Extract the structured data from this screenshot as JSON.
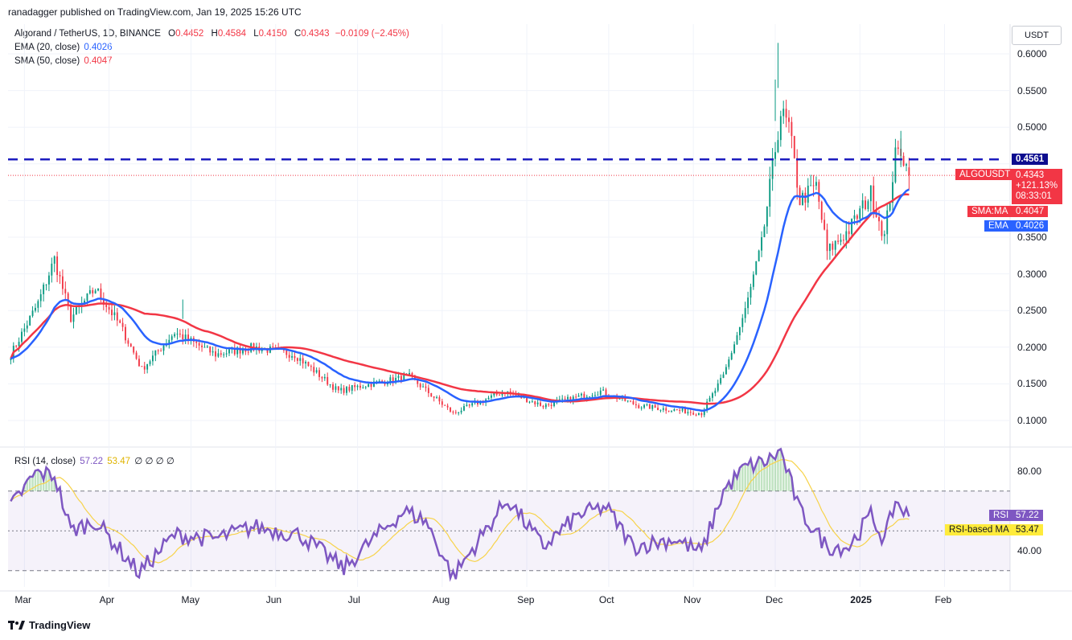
{
  "header": {
    "publisher": "ranadagger published on TradingView.com, Jan 19, 2025 15:26 UTC"
  },
  "legend": {
    "symbol": "Algorand / TetherUS, 1D, BINANCE",
    "open_label": "O",
    "open": "0.4452",
    "high_label": "H",
    "high": "0.4584",
    "low_label": "L",
    "low": "0.4150",
    "close_label": "C",
    "close": "0.4343",
    "change": "−0.0109 (−2.45%)",
    "ema_label": "EMA (20, close)",
    "ema_value": "0.4026",
    "sma_label": "SMA (50, close)",
    "sma_value": "0.4047",
    "rsi_label": "RSI (14, close)",
    "rsi_value": "57.22",
    "rsi_ma_value": "53.47",
    "rsi_extra": "∅ ∅ ∅ ∅"
  },
  "price_axis": {
    "currency": "USDT",
    "ticks": [
      "0.6000",
      "0.5500",
      "0.5000",
      "0.4500",
      "0.4000",
      "0.3500",
      "0.3000",
      "0.2500",
      "0.2000",
      "0.1500",
      "0.1000"
    ],
    "ticks_shown": [
      "0.6000",
      "0.5500",
      "0.5000",
      "0.3500",
      "0.3000",
      "0.2500",
      "0.2000",
      "0.1500",
      "0.1000"
    ]
  },
  "tags": {
    "resistance": "0.4561",
    "symbol_name": "ALGOUSDT",
    "last_price": "0.4343",
    "change_pct": "+121.13%",
    "countdown": "08:33:01",
    "sma_tag_label": "SMA:MA",
    "sma_tag_value": "0.4047",
    "ema_tag_label": "EMA",
    "ema_tag_value": "0.4026",
    "rsi_tag_label": "RSI",
    "rsi_tag_value": "57.22",
    "rsi_ma_tag_label": "RSI-based MA",
    "rsi_ma_tag_value": "53.47"
  },
  "rsi_axis": {
    "ticks": [
      "80.00",
      "40.00"
    ]
  },
  "time_axis": [
    "Mar",
    "Apr",
    "May",
    "Jun",
    "Jul",
    "Aug",
    "Sep",
    "Oct",
    "Nov",
    "Dec",
    "2025",
    "Feb"
  ],
  "branding": {
    "logo_text": "TradingView"
  },
  "colors": {
    "up": "#089981",
    "down": "#f23645",
    "ema": "#2962ff",
    "sma": "#f23645",
    "resistance": "#1d1dbf",
    "rsi": "#7e57c2",
    "rsi_ma": "#f7d34a"
  },
  "chart_data": [
    {
      "type": "candlestick",
      "title": "Algorand / TetherUS, 1D, BINANCE",
      "ylabel": "USDT",
      "ylim": [
        0.08,
        0.63
      ],
      "x_labels": [
        "Mar",
        "Apr",
        "May",
        "Jun",
        "Jul",
        "Aug",
        "Sep",
        "Oct",
        "Nov",
        "Dec",
        "2025",
        "Feb"
      ],
      "resistance_level": 0.4561,
      "anchors": [
        {
          "date": "2024-02-25",
          "close": 0.19
        },
        {
          "date": "2024-03-06",
          "close": 0.26
        },
        {
          "date": "2024-03-12",
          "close": 0.32
        },
        {
          "date": "2024-03-18",
          "close": 0.24
        },
        {
          "date": "2024-03-27",
          "close": 0.28
        },
        {
          "date": "2024-04-05",
          "close": 0.23
        },
        {
          "date": "2024-04-13",
          "close": 0.17
        },
        {
          "date": "2024-04-25",
          "close": 0.22
        },
        {
          "date": "2024-05-10",
          "close": 0.19
        },
        {
          "date": "2024-05-24",
          "close": 0.2
        },
        {
          "date": "2024-06-08",
          "close": 0.19
        },
        {
          "date": "2024-06-24",
          "close": 0.14
        },
        {
          "date": "2024-07-06",
          "close": 0.15
        },
        {
          "date": "2024-07-20",
          "close": 0.16
        },
        {
          "date": "2024-08-05",
          "close": 0.11
        },
        {
          "date": "2024-08-24",
          "close": 0.14
        },
        {
          "date": "2024-09-07",
          "close": 0.12
        },
        {
          "date": "2024-09-28",
          "close": 0.14
        },
        {
          "date": "2024-10-12",
          "close": 0.12
        },
        {
          "date": "2024-11-04",
          "close": 0.11
        },
        {
          "date": "2024-11-12",
          "close": 0.16
        },
        {
          "date": "2024-11-20",
          "close": 0.25
        },
        {
          "date": "2024-11-26",
          "close": 0.34
        },
        {
          "date": "2024-12-01",
          "close": 0.47
        },
        {
          "date": "2024-12-03",
          "close": 0.52
        },
        {
          "date": "2024-12-06",
          "close": 0.5
        },
        {
          "date": "2024-12-10",
          "close": 0.4
        },
        {
          "date": "2024-12-16",
          "close": 0.42
        },
        {
          "date": "2024-12-20",
          "close": 0.33
        },
        {
          "date": "2024-12-28",
          "close": 0.36
        },
        {
          "date": "2025-01-05",
          "close": 0.41
        },
        {
          "date": "2025-01-10",
          "close": 0.35
        },
        {
          "date": "2025-01-14",
          "close": 0.46
        },
        {
          "date": "2025-01-16",
          "close": 0.47
        },
        {
          "date": "2025-01-19",
          "close": 0.4343
        }
      ],
      "series": [
        {
          "name": "EMA (20, close)",
          "last": 0.4026
        },
        {
          "name": "SMA (50, close)",
          "last": 0.4047
        }
      ],
      "last_candle": {
        "open": 0.4452,
        "high": 0.4584,
        "low": 0.415,
        "close": 0.4343
      }
    },
    {
      "type": "line",
      "title": "RSI (14, close)",
      "ylim": [
        20,
        95
      ],
      "bands": [
        30,
        50,
        70
      ],
      "anchors": [
        {
          "date": "2024-02-25",
          "rsi": 62
        },
        {
          "date": "2024-03-05",
          "rsi": 79
        },
        {
          "date": "2024-03-12",
          "rsi": 78
        },
        {
          "date": "2024-03-18",
          "rsi": 50
        },
        {
          "date": "2024-03-27",
          "rsi": 55
        },
        {
          "date": "2024-04-12",
          "rsi": 29
        },
        {
          "date": "2024-04-25",
          "rsi": 48
        },
        {
          "date": "2024-05-10",
          "rsi": 46
        },
        {
          "date": "2024-05-24",
          "rsi": 52
        },
        {
          "date": "2024-06-10",
          "rsi": 48
        },
        {
          "date": "2024-06-26",
          "rsi": 31
        },
        {
          "date": "2024-07-06",
          "rsi": 45
        },
        {
          "date": "2024-07-18",
          "rsi": 60
        },
        {
          "date": "2024-07-26",
          "rsi": 55
        },
        {
          "date": "2024-08-05",
          "rsi": 27
        },
        {
          "date": "2024-08-25",
          "rsi": 66
        },
        {
          "date": "2024-09-07",
          "rsi": 42
        },
        {
          "date": "2024-09-20",
          "rsi": 58
        },
        {
          "date": "2024-09-30",
          "rsi": 62
        },
        {
          "date": "2024-10-10",
          "rsi": 42
        },
        {
          "date": "2024-10-25",
          "rsi": 46
        },
        {
          "date": "2024-11-04",
          "rsi": 39
        },
        {
          "date": "2024-11-12",
          "rsi": 70
        },
        {
          "date": "2024-11-20",
          "rsi": 82
        },
        {
          "date": "2024-11-28",
          "rsi": 85
        },
        {
          "date": "2024-12-03",
          "rsi": 90
        },
        {
          "date": "2024-12-10",
          "rsi": 60
        },
        {
          "date": "2024-12-20",
          "rsi": 42
        },
        {
          "date": "2024-12-28",
          "rsi": 42
        },
        {
          "date": "2025-01-05",
          "rsi": 58
        },
        {
          "date": "2025-01-10",
          "rsi": 45
        },
        {
          "date": "2025-01-14",
          "rsi": 65
        },
        {
          "date": "2025-01-19",
          "rsi": 57.22
        }
      ],
      "series": [
        {
          "name": "RSI",
          "last": 57.22
        },
        {
          "name": "RSI-based MA",
          "last": 53.47
        }
      ]
    }
  ]
}
